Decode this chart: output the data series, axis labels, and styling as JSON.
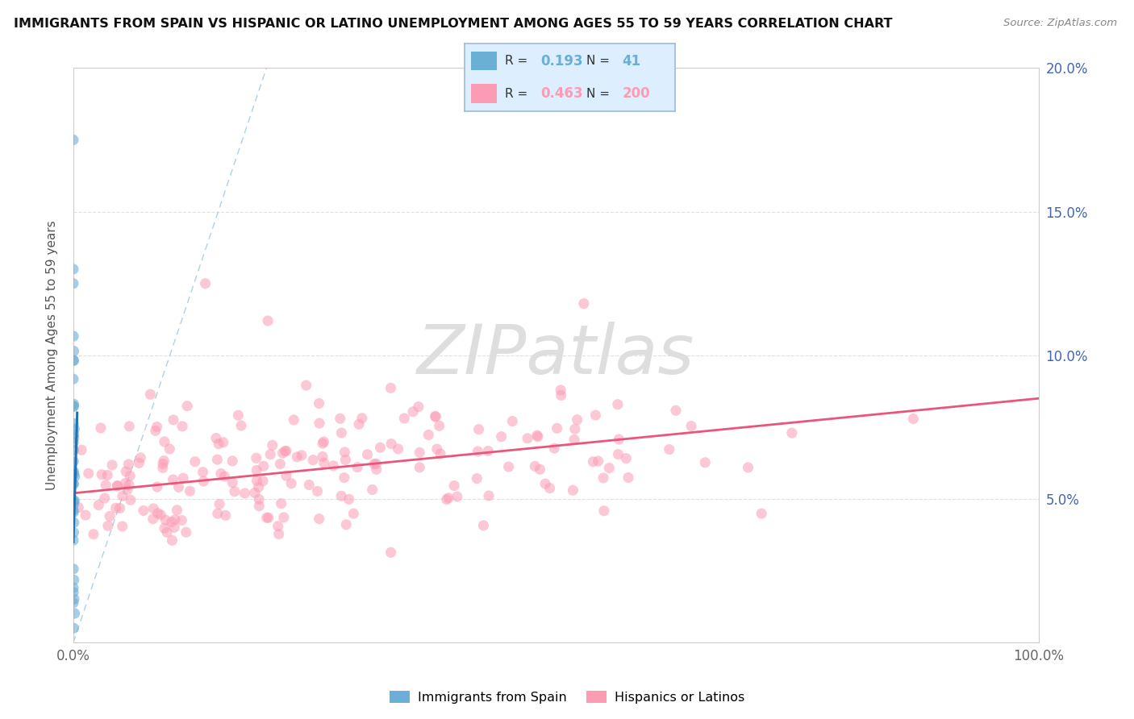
{
  "title": "IMMIGRANTS FROM SPAIN VS HISPANIC OR LATINO UNEMPLOYMENT AMONG AGES 55 TO 59 YEARS CORRELATION CHART",
  "source": "Source: ZipAtlas.com",
  "ylabel": "Unemployment Among Ages 55 to 59 years",
  "xlim": [
    0,
    1.0
  ],
  "ylim": [
    0,
    0.2
  ],
  "r_spain": 0.193,
  "n_spain": 41,
  "r_hispanic": 0.463,
  "n_hispanic": 200,
  "color_spain": "#6baed6",
  "color_hispanic": "#fc9cb4",
  "trendline_spain_color": "#2171b5",
  "trendline_hispanic_color": "#e8567a",
  "diagonal_color": "#9ecae1",
  "watermark_color": "#dedede",
  "background_color": "#ffffff",
  "grid_color": "#dddddd",
  "legend_box_color": "#ddeeff",
  "legend_border_color": "#99bbdd",
  "axis_label_color": "#4466aa",
  "tick_label_color": "#666666",
  "title_color": "#111111",
  "source_color": "#888888"
}
